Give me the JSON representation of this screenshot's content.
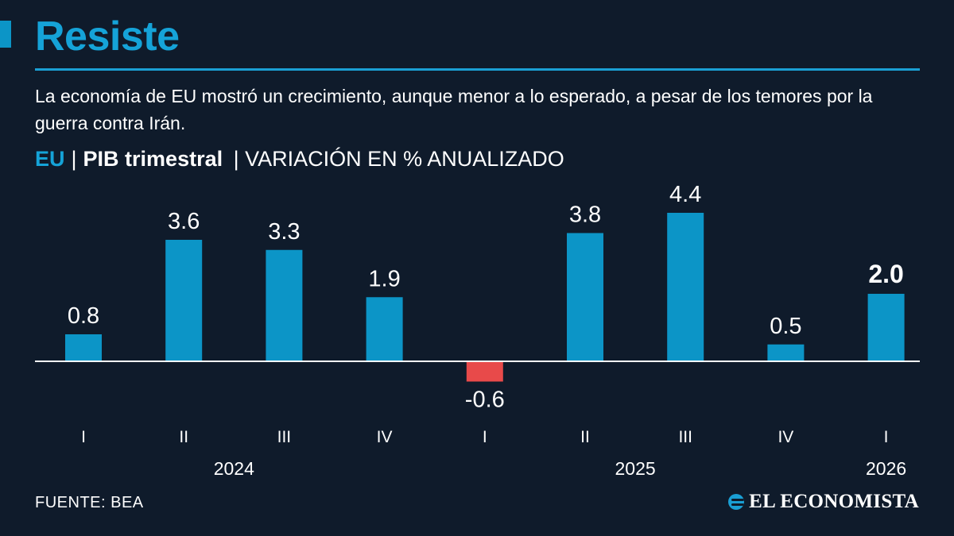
{
  "header": {
    "title": "Resiste",
    "subtitle": "La economía de EU mostró un crecimiento, aunque menor a lo esperado, a pesar de los temores por la guerra contra Irán.",
    "country": "EU",
    "separator": "|",
    "metric": "PIB trimestral",
    "unit": "| VARIACIÓN EN % ANUALIZADO"
  },
  "chart_data": {
    "type": "bar",
    "categories": [
      "I",
      "II",
      "III",
      "IV",
      "I",
      "II",
      "III",
      "IV",
      "I"
    ],
    "values": [
      0.8,
      3.6,
      3.3,
      1.9,
      -0.6,
      3.8,
      4.4,
      0.5,
      2.0
    ],
    "value_labels": [
      "0.8",
      "3.6",
      "3.3",
      "1.9",
      "-0.6",
      "3.8",
      "4.4",
      "0.5",
      "2.0"
    ],
    "years": [
      {
        "label": "2024",
        "quarters": [
          0,
          3
        ]
      },
      {
        "label": "2025",
        "quarters": [
          4,
          7
        ]
      },
      {
        "label": "2026",
        "quarters": [
          8,
          8
        ]
      }
    ],
    "highlight_index": 8,
    "colors": {
      "positive": "#0c95c7",
      "negative": "#e84a4a",
      "baseline": "#ffffff"
    },
    "ylim": [
      -0.6,
      4.4
    ],
    "grid": false,
    "legend": "none"
  },
  "footer": {
    "source": "FUENTE: BEA",
    "brand": "EL ECONOMISTA",
    "brand_icon": "el-economista-logo-icon"
  }
}
